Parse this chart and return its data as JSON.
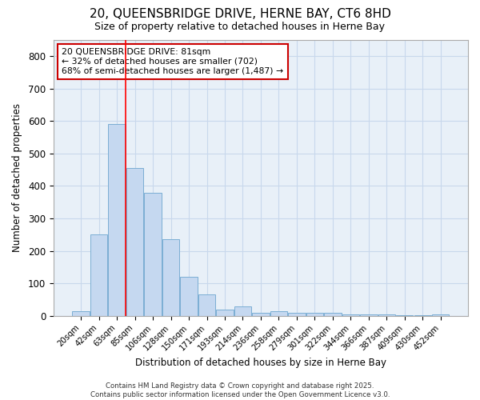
{
  "title": "20, QUEENSBRIDGE DRIVE, HERNE BAY, CT6 8HD",
  "subtitle": "Size of property relative to detached houses in Herne Bay",
  "xlabel": "Distribution of detached houses by size in Herne Bay",
  "ylabel": "Number of detached properties",
  "bar_labels": [
    "20sqm",
    "42sqm",
    "63sqm",
    "85sqm",
    "106sqm",
    "128sqm",
    "150sqm",
    "171sqm",
    "193sqm",
    "214sqm",
    "236sqm",
    "258sqm",
    "279sqm",
    "301sqm",
    "322sqm",
    "344sqm",
    "366sqm",
    "387sqm",
    "409sqm",
    "430sqm",
    "452sqm"
  ],
  "bar_values": [
    15,
    250,
    590,
    455,
    378,
    235,
    120,
    65,
    20,
    30,
    10,
    15,
    10,
    10,
    8,
    3,
    3,
    3,
    2,
    1,
    5
  ],
  "bar_color": "#c5d8f0",
  "bar_edgecolor": "#7baed4",
  "grid_color": "#c8d8ec",
  "background_color": "#ffffff",
  "plot_bg_color": "#e8f0f8",
  "red_line_index": 2.5,
  "annotation_text": "20 QUEENSBRIDGE DRIVE: 81sqm\n← 32% of detached houses are smaller (702)\n68% of semi-detached houses are larger (1,487) →",
  "annotation_box_color": "#ffffff",
  "annotation_border_color": "#cc0000",
  "ylim": [
    0,
    850
  ],
  "yticks": [
    0,
    100,
    200,
    300,
    400,
    500,
    600,
    700,
    800
  ],
  "footer": "Contains HM Land Registry data © Crown copyright and database right 2025.\nContains public sector information licensed under the Open Government Licence v3.0."
}
